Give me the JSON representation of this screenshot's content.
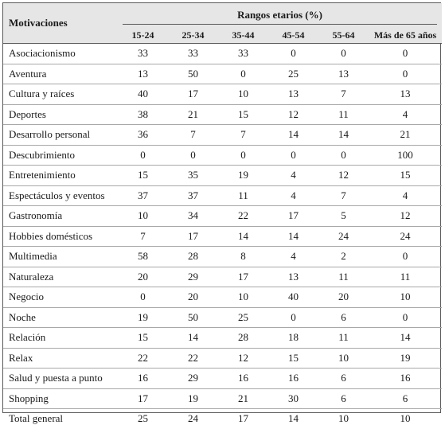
{
  "table": {
    "header": {
      "motivaciones": "Motivaciones",
      "group": "Rangos etarios (%)",
      "columns": [
        "15-24",
        "25-34",
        "35-44",
        "45-54",
        "55-64",
        "Más de 65 años"
      ]
    },
    "rows": [
      {
        "label": "Asociacionismo",
        "values": [
          "33",
          "33",
          "33",
          "0",
          "0",
          "0"
        ]
      },
      {
        "label": "Aventura",
        "values": [
          "13",
          "50",
          "0",
          "25",
          "13",
          "0"
        ]
      },
      {
        "label": "Cultura y raíces",
        "values": [
          "40",
          "17",
          "10",
          "13",
          "7",
          "13"
        ]
      },
      {
        "label": "Deportes",
        "values": [
          "38",
          "21",
          "15",
          "12",
          "11",
          "4"
        ]
      },
      {
        "label": "Desarrollo personal",
        "values": [
          "36",
          "7",
          "7",
          "14",
          "14",
          "21"
        ]
      },
      {
        "label": "Descubrimiento",
        "values": [
          "0",
          "0",
          "0",
          "0",
          "0",
          "100"
        ]
      },
      {
        "label": "Entretenimiento",
        "values": [
          "15",
          "35",
          "19",
          "4",
          "12",
          "15"
        ]
      },
      {
        "label": "Espectáculos y eventos",
        "values": [
          "37",
          "37",
          "11",
          "4",
          "7",
          "4"
        ]
      },
      {
        "label": "Gastronomía",
        "values": [
          "10",
          "34",
          "22",
          "17",
          "5",
          "12"
        ]
      },
      {
        "label": "Hobbies domésticos",
        "values": [
          "7",
          "17",
          "14",
          "14",
          "24",
          "24"
        ]
      },
      {
        "label": "Multimedia",
        "values": [
          "58",
          "28",
          "8",
          "4",
          "2",
          "0"
        ]
      },
      {
        "label": "Naturaleza",
        "values": [
          "20",
          "29",
          "17",
          "13",
          "11",
          "11"
        ]
      },
      {
        "label": "Negocio",
        "values": [
          "0",
          "20",
          "10",
          "40",
          "20",
          "10"
        ]
      },
      {
        "label": "Noche",
        "values": [
          "19",
          "50",
          "25",
          "0",
          "6",
          "0"
        ]
      },
      {
        "label": "Relación",
        "values": [
          "15",
          "14",
          "28",
          "18",
          "11",
          "14"
        ]
      },
      {
        "label": "Relax",
        "values": [
          "22",
          "22",
          "12",
          "15",
          "10",
          "19"
        ]
      },
      {
        "label": "Salud y puesta a punto",
        "values": [
          "16",
          "29",
          "16",
          "16",
          "6",
          "16"
        ]
      },
      {
        "label": "Shopping",
        "values": [
          "17",
          "19",
          "21",
          "30",
          "6",
          "6"
        ]
      },
      {
        "label": "Total general",
        "values": [
          "25",
          "24",
          "17",
          "14",
          "10",
          "10"
        ]
      }
    ]
  }
}
